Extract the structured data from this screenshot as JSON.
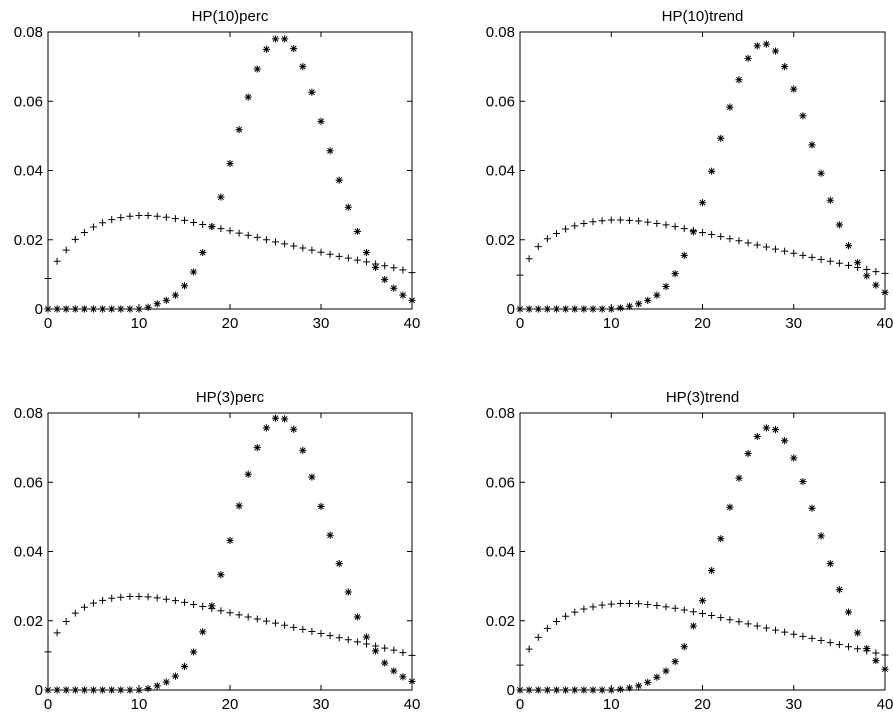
{
  "chart_data": [
    {
      "type": "scatter",
      "title": "HP(10)perc",
      "xlabel": "",
      "ylabel": "",
      "xlim": [
        0,
        40
      ],
      "ylim": [
        0,
        0.08
      ],
      "xticks": [
        "0",
        "10",
        "20",
        "30",
        "40"
      ],
      "yticks": [
        "0",
        "0.02",
        "0.04",
        "0.06",
        "0.08"
      ],
      "grid": false,
      "series": [
        {
          "marker": "plus",
          "x": [
            0,
            1,
            2,
            3,
            4,
            5,
            6,
            7,
            8,
            9,
            10,
            11,
            12,
            13,
            14,
            15,
            16,
            17,
            18,
            19,
            20,
            21,
            22,
            23,
            24,
            25,
            26,
            27,
            28,
            29,
            30,
            31,
            32,
            33,
            34,
            35,
            36,
            37,
            38,
            39,
            40
          ],
          "values": [
            0.0088,
            0.0138,
            0.017,
            0.0201,
            0.0221,
            0.0237,
            0.0249,
            0.0258,
            0.0264,
            0.0268,
            0.027,
            0.027,
            0.0268,
            0.0265,
            0.0261,
            0.0256,
            0.025,
            0.0244,
            0.0238,
            0.0232,
            0.0226,
            0.0219,
            0.0213,
            0.0207,
            0.02,
            0.0194,
            0.0188,
            0.0182,
            0.0176,
            0.017,
            0.0164,
            0.0158,
            0.0152,
            0.0147,
            0.0141,
            0.0136,
            0.013,
            0.0125,
            0.0119,
            0.0113,
            0.0105
          ]
        },
        {
          "marker": "star",
          "x": [
            0,
            1,
            2,
            3,
            4,
            5,
            6,
            7,
            8,
            9,
            10,
            11,
            12,
            13,
            14,
            15,
            16,
            17,
            18,
            19,
            20,
            21,
            22,
            23,
            24,
            25,
            26,
            27,
            28,
            29,
            30,
            31,
            32,
            33,
            34,
            35,
            36,
            37,
            38,
            39,
            40
          ],
          "values": [
            0,
            0,
            0,
            0,
            0,
            0,
            0,
            0,
            0,
            0,
            0,
            0.0005,
            0.0015,
            0.0025,
            0.004,
            0.0067,
            0.0107,
            0.0163,
            0.0238,
            0.0323,
            0.042,
            0.0518,
            0.0612,
            0.0693,
            0.075,
            0.078,
            0.078,
            0.0752,
            0.07,
            0.0626,
            0.0542,
            0.0457,
            0.0372,
            0.0294,
            0.0224,
            0.0163,
            0.012,
            0.0085,
            0.006,
            0.004,
            0.0025
          ]
        }
      ]
    },
    {
      "type": "scatter",
      "title": "HP(10)trend",
      "xlabel": "",
      "ylabel": "",
      "xlim": [
        0,
        40
      ],
      "ylim": [
        0,
        0.08
      ],
      "xticks": [
        "0",
        "10",
        "20",
        "30",
        "40"
      ],
      "yticks": [
        "0",
        "0.02",
        "0.04",
        "0.06",
        "0.08"
      ],
      "grid": false,
      "series": [
        {
          "marker": "plus",
          "x": [
            0,
            1,
            2,
            3,
            4,
            5,
            6,
            7,
            8,
            9,
            10,
            11,
            12,
            13,
            14,
            15,
            16,
            17,
            18,
            19,
            20,
            21,
            22,
            23,
            24,
            25,
            26,
            27,
            28,
            29,
            30,
            31,
            32,
            33,
            34,
            35,
            36,
            37,
            38,
            39,
            40
          ],
          "values": [
            0.0098,
            0.0145,
            0.018,
            0.0203,
            0.0218,
            0.0231,
            0.024,
            0.0247,
            0.0252,
            0.0255,
            0.0257,
            0.0257,
            0.0256,
            0.0254,
            0.0251,
            0.0247,
            0.0243,
            0.0238,
            0.0232,
            0.0227,
            0.0221,
            0.0215,
            0.0209,
            0.0203,
            0.0197,
            0.0191,
            0.0185,
            0.0179,
            0.0173,
            0.0167,
            0.0161,
            0.0155,
            0.0149,
            0.0143,
            0.0138,
            0.0132,
            0.0126,
            0.012,
            0.0114,
            0.0108,
            0.0103
          ]
        },
        {
          "marker": "star",
          "x": [
            0,
            1,
            2,
            3,
            4,
            5,
            6,
            7,
            8,
            9,
            10,
            11,
            12,
            13,
            14,
            15,
            16,
            17,
            18,
            19,
            20,
            21,
            22,
            23,
            24,
            25,
            26,
            27,
            28,
            29,
            30,
            31,
            32,
            33,
            34,
            35,
            36,
            37,
            38,
            39,
            40
          ],
          "values": [
            0,
            0,
            0,
            0,
            0,
            0,
            0,
            0,
            0,
            0,
            0,
            0.0003,
            0.0008,
            0.0015,
            0.0025,
            0.004,
            0.0065,
            0.0102,
            0.0155,
            0.0223,
            0.0307,
            0.0398,
            0.0493,
            0.0583,
            0.0662,
            0.0724,
            0.076,
            0.0765,
            0.0745,
            0.07,
            0.0635,
            0.0558,
            0.0474,
            0.0392,
            0.0314,
            0.0243,
            0.0183,
            0.0134,
            0.0096,
            0.0069,
            0.0048
          ]
        }
      ]
    },
    {
      "type": "scatter",
      "title": "HP(3)perc",
      "xlabel": "",
      "ylabel": "",
      "xlim": [
        0,
        40
      ],
      "ylim": [
        0,
        0.08
      ],
      "xticks": [
        "0",
        "10",
        "20",
        "30",
        "40"
      ],
      "yticks": [
        "0",
        "0.02",
        "0.04",
        "0.06",
        "0.08"
      ],
      "grid": false,
      "series": [
        {
          "marker": "plus",
          "x": [
            0,
            1,
            2,
            3,
            4,
            5,
            6,
            7,
            8,
            9,
            10,
            11,
            12,
            13,
            14,
            15,
            16,
            17,
            18,
            19,
            20,
            21,
            22,
            23,
            24,
            25,
            26,
            27,
            28,
            29,
            30,
            31,
            32,
            33,
            34,
            35,
            36,
            37,
            38,
            39,
            40
          ],
          "values": [
            0.011,
            0.0165,
            0.0198,
            0.0222,
            0.0239,
            0.0251,
            0.0259,
            0.0265,
            0.0268,
            0.027,
            0.027,
            0.0269,
            0.0266,
            0.0262,
            0.0258,
            0.0253,
            0.0247,
            0.0241,
            0.0235,
            0.0229,
            0.0223,
            0.0217,
            0.0211,
            0.0205,
            0.0199,
            0.0193,
            0.0187,
            0.0181,
            0.0175,
            0.0169,
            0.0163,
            0.0157,
            0.0151,
            0.0145,
            0.0139,
            0.0133,
            0.0127,
            0.0121,
            0.0115,
            0.0108,
            0.01
          ]
        },
        {
          "marker": "star",
          "x": [
            0,
            1,
            2,
            3,
            4,
            5,
            6,
            7,
            8,
            9,
            10,
            11,
            12,
            13,
            14,
            15,
            16,
            17,
            18,
            19,
            20,
            21,
            22,
            23,
            24,
            25,
            26,
            27,
            28,
            29,
            30,
            31,
            32,
            33,
            34,
            35,
            36,
            37,
            38,
            39,
            40
          ],
          "values": [
            0,
            0,
            0,
            0,
            0,
            0,
            0,
            0,
            0,
            0,
            0,
            0.0004,
            0.0012,
            0.0023,
            0.004,
            0.0068,
            0.011,
            0.0168,
            0.0243,
            0.0333,
            0.0432,
            0.0532,
            0.0623,
            0.07,
            0.0757,
            0.0785,
            0.0783,
            0.0753,
            0.0692,
            0.0615,
            0.053,
            0.0447,
            0.0365,
            0.0283,
            0.0211,
            0.0153,
            0.0113,
            0.0078,
            0.0055,
            0.0038,
            0.0025
          ]
        }
      ]
    },
    {
      "type": "scatter",
      "title": "HP(3)trend",
      "xlabel": "",
      "ylabel": "",
      "xlim": [
        0,
        40
      ],
      "ylim": [
        0,
        0.08
      ],
      "xticks": [
        "0",
        "10",
        "20",
        "30",
        "40"
      ],
      "yticks": [
        "0",
        "0.02",
        "0.04",
        "0.06",
        "0.08"
      ],
      "grid": false,
      "series": [
        {
          "marker": "plus",
          "x": [
            0,
            1,
            2,
            3,
            4,
            5,
            6,
            7,
            8,
            9,
            10,
            11,
            12,
            13,
            14,
            15,
            16,
            17,
            18,
            19,
            20,
            21,
            22,
            23,
            24,
            25,
            26,
            27,
            28,
            29,
            30,
            31,
            32,
            33,
            34,
            35,
            36,
            37,
            38,
            39,
            40
          ],
          "values": [
            0.0072,
            0.0118,
            0.0152,
            0.0178,
            0.0198,
            0.0213,
            0.0225,
            0.0234,
            0.024,
            0.0245,
            0.0248,
            0.025,
            0.025,
            0.0249,
            0.0247,
            0.0244,
            0.024,
            0.0236,
            0.0231,
            0.0226,
            0.0221,
            0.0215,
            0.0209,
            0.0203,
            0.0197,
            0.0191,
            0.0185,
            0.0179,
            0.0173,
            0.0167,
            0.0161,
            0.0155,
            0.0149,
            0.0143,
            0.0137,
            0.0131,
            0.0125,
            0.0119,
            0.0113,
            0.0107,
            0.0101
          ]
        },
        {
          "marker": "star",
          "x": [
            0,
            1,
            2,
            3,
            4,
            5,
            6,
            7,
            8,
            9,
            10,
            11,
            12,
            13,
            14,
            15,
            16,
            17,
            18,
            19,
            20,
            21,
            22,
            23,
            24,
            25,
            26,
            27,
            28,
            29,
            30,
            31,
            32,
            33,
            34,
            35,
            36,
            37,
            38,
            39,
            40
          ],
          "values": [
            0,
            0,
            0,
            0,
            0,
            0,
            0,
            0,
            0,
            0,
            0,
            0.0002,
            0.0006,
            0.0012,
            0.0022,
            0.0037,
            0.0055,
            0.0082,
            0.0125,
            0.0185,
            0.0258,
            0.0345,
            0.0437,
            0.0528,
            0.0612,
            0.0683,
            0.0732,
            0.0757,
            0.0752,
            0.072,
            0.067,
            0.0602,
            0.0525,
            0.0445,
            0.0365,
            0.029,
            0.0225,
            0.0165,
            0.012,
            0.0085,
            0.006
          ]
        }
      ]
    }
  ]
}
